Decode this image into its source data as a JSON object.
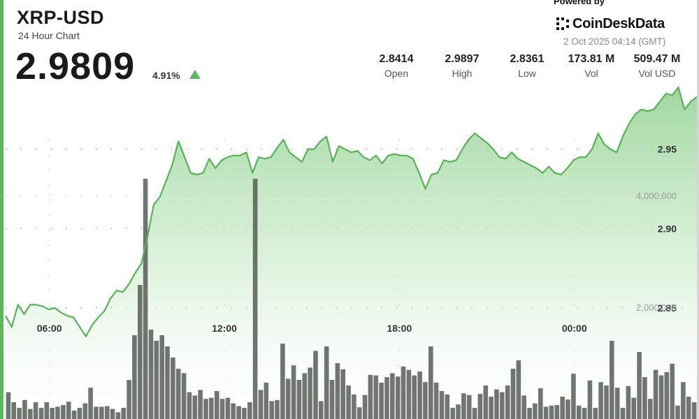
{
  "header": {
    "symbol": "XRP-USD",
    "subtitle": "24 Hour Chart",
    "price": "2.9809",
    "change": "4.91%"
  },
  "branding": {
    "powered_by": "Powered by",
    "name": "CoinDeskData",
    "timestamp": "2 Oct 2025 04:14 (GMT)"
  },
  "stats": [
    {
      "value": "2.8414",
      "label": "Open"
    },
    {
      "value": "2.9897",
      "label": "High"
    },
    {
      "value": "2.8361",
      "label": "Low"
    },
    {
      "value": "173.81 M",
      "label": "Vol"
    },
    {
      "value": "509.47 M",
      "label": "Vol USD"
    }
  ],
  "colors": {
    "accent": "#5cb85c",
    "line": "#56b356",
    "volume_bar": "#565d56"
  },
  "chart_data": {
    "type": "area",
    "x_tick_labels": [
      "06:00",
      "12:00",
      "18:00",
      "00:00"
    ],
    "x_tick_hours": [
      6,
      12,
      18,
      24
    ],
    "x_range_hours": [
      4.5,
      28.2
    ],
    "price_ticks": [
      2.85,
      2.9,
      2.95
    ],
    "price_tick_labels": [
      "2.85",
      "2.90",
      "2.95"
    ],
    "price_range": [
      2.78,
      3.0
    ],
    "volume_ticks": [
      2000000,
      4000000
    ],
    "volume_tick_labels": [
      "2,000,000",
      "4,000,000"
    ],
    "volume_range": [
      0,
      6000000
    ],
    "grid": "dotted",
    "series": [
      {
        "values": [
          2.845,
          2.838,
          2.852,
          2.846,
          2.852,
          2.852,
          2.851,
          2.849,
          2.85,
          2.847,
          2.845,
          2.844,
          2.838,
          2.832,
          2.839,
          2.844,
          2.848,
          2.856,
          2.861,
          2.86,
          2.865,
          2.872,
          2.878,
          2.895,
          2.915,
          2.92,
          2.93,
          2.94,
          2.955,
          2.945,
          2.935,
          2.934,
          2.935,
          2.944,
          2.938,
          2.943,
          2.945,
          2.946,
          2.946,
          2.948,
          2.935,
          2.945,
          2.944,
          2.945,
          2.951,
          2.956,
          2.948,
          2.945,
          2.942,
          2.95,
          2.95,
          2.955,
          2.958,
          2.942,
          2.952,
          2.95,
          2.948,
          2.949,
          2.945,
          2.943,
          2.946,
          2.941,
          2.946,
          2.947,
          2.946,
          2.946,
          2.944,
          2.935,
          2.925,
          2.934,
          2.935,
          2.943,
          2.942,
          2.943,
          2.95,
          2.956,
          2.96,
          2.957,
          2.954,
          2.95,
          2.945,
          2.944,
          2.948,
          2.944,
          2.942,
          2.94,
          2.938,
          2.935,
          2.939,
          2.935,
          2.934,
          2.938,
          2.943,
          2.945,
          2.945,
          2.95,
          2.96,
          2.953,
          2.95,
          2.948,
          2.958,
          2.966,
          2.972,
          2.975,
          2.974,
          2.975,
          2.98,
          2.985,
          2.984,
          2.989,
          2.975,
          2.98,
          2.983
        ]
      }
    ],
    "volume": [
      480000,
      300000,
      200000,
      340000,
      180000,
      300000,
      200000,
      300000,
      200000,
      220000,
      250000,
      310000,
      150000,
      200000,
      280000,
      560000,
      220000,
      220000,
      230000,
      180000,
      120000,
      200000,
      700000,
      1500000,
      2400000,
      4300000,
      1600000,
      1400000,
      1500000,
      1300000,
      1100000,
      900000,
      820000,
      480000,
      420000,
      520000,
      360000,
      380000,
      500000,
      360000,
      380000,
      280000,
      230000,
      200000,
      300000,
      4300000,
      520000,
      650000,
      320000,
      340000,
      1350000,
      720000,
      960000,
      700000,
      820000,
      920000,
      1220000,
      320000,
      1300000,
      700000,
      1000000,
      890000,
      600000,
      440000,
      210000,
      430000,
      790000,
      780000,
      650000,
      750000,
      820000,
      760000,
      940000,
      880000,
      780000,
      850000,
      660000,
      1300000,
      650000,
      500000,
      440000,
      200000,
      260000,
      460000,
      430000,
      200000,
      450000,
      600000,
      400000,
      530000,
      480000,
      600000,
      900000,
      1050000,
      420000,
      200000,
      280000,
      550000,
      220000,
      240000,
      250000,
      400000,
      350000,
      810000,
      240000,
      200000,
      690000,
      200000,
      660000,
      600000,
      1400000,
      560000,
      200000,
      590000,
      380000,
      1200000,
      750000,
      360000,
      880000,
      780000,
      840000,
      990000,
      240000,
      660000,
      400000,
      300000
    ]
  }
}
